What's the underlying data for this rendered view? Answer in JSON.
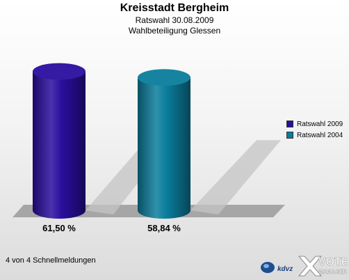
{
  "header": {
    "title": "Kreisstadt Bergheim",
    "line2": "Ratswahl 30.08.2009",
    "line3": "Wahlbeteiligung Glessen"
  },
  "footer": {
    "text": "4 von 4 Schnellmeldungen"
  },
  "logos": {
    "kdvz": "kdvz",
    "vote": "VOTE",
    "manager": "MANAGER"
  },
  "colors": {
    "series1": "#2a0e9e",
    "series2": "#0a7d9c",
    "floor": "#a6a6a6"
  },
  "chart_data": {
    "type": "bar",
    "categories": [
      "Ratswahl 2009",
      "Ratswahl 2004"
    ],
    "values": [
      61.5,
      58.84
    ],
    "value_labels": [
      "61,50 %",
      "58,84 %"
    ],
    "legend": [
      "Ratswahl 2009",
      "Ratswahl 2004"
    ],
    "legend_position": "right",
    "ylim": [
      0,
      70
    ],
    "grid": false
  }
}
